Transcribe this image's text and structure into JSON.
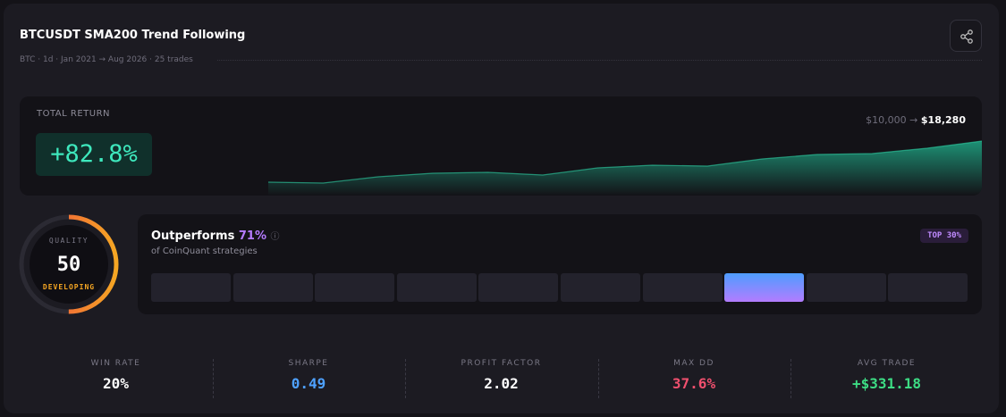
{
  "header": {
    "title": "BTCUSDT SMA200 Trend Following",
    "subtitle": "BTC · 1d · Jan 2021 → Aug 2026 · 25 trades"
  },
  "total_return": {
    "label": "TOTAL RETURN",
    "value": "+82.8%",
    "start_equity": "$10,000",
    "arrow": "→",
    "end_equity": "$18,280",
    "equity_curve": [
      10176,
      10000,
      11233,
      11938,
      12114,
      11586,
      12995,
      13523,
      13347,
      14757,
      15638,
      15814,
      16871,
      18280
    ]
  },
  "quality": {
    "label": "QUALITY",
    "score": 50,
    "range": [
      0,
      100
    ],
    "grade": "DEVELOPING"
  },
  "percentile": {
    "title": "Outperforms",
    "value": 71,
    "value_label": "71%",
    "subtitle": "of CoinQuant strategies",
    "badge": "TOP 30%"
  },
  "stats": [
    {
      "label": "WIN RATE",
      "value": "20%"
    },
    {
      "label": "SHARPE",
      "value": "0.49"
    },
    {
      "label": "PROFIT FACTOR",
      "value": "2.02"
    },
    {
      "label": "MAX DD",
      "value": "37.6%"
    },
    {
      "label": "AVG TRADE",
      "value": "+$331.18"
    }
  ]
}
